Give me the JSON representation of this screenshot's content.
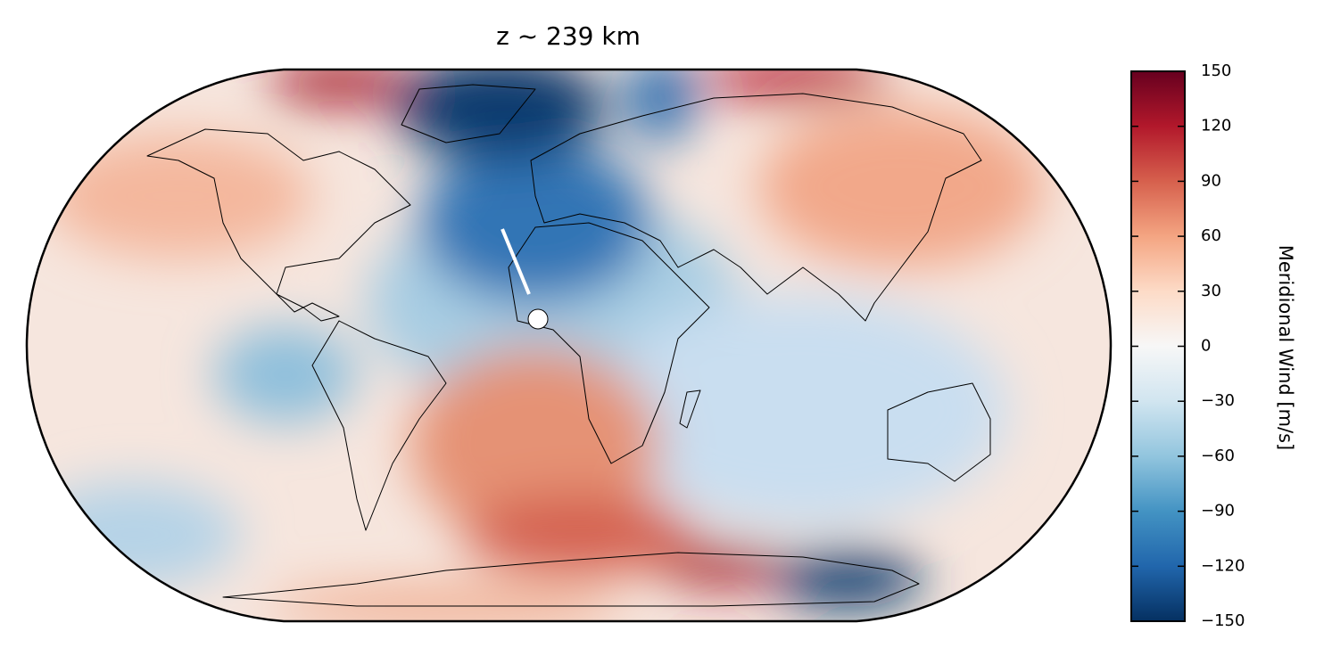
{
  "title": "z ~ 239 km",
  "colorbar": {
    "label": "Meridional Wind [m/s]",
    "lim": [
      -150,
      150
    ],
    "ticks": [
      {
        "value": -150,
        "label": "−150"
      },
      {
        "value": -120,
        "label": "−120"
      },
      {
        "value": -90,
        "label": "−90"
      },
      {
        "value": -60,
        "label": "−60"
      },
      {
        "value": -30,
        "label": "−30"
      },
      0,
      30,
      60,
      90,
      120,
      150
    ],
    "colors": [
      "#053061",
      "#2166ac",
      "#4393c3",
      "#92c5de",
      "#d1e5f0",
      "#f7f7f7",
      "#fddbc7",
      "#f4a582",
      "#d6604d",
      "#b2182b",
      "#67001f"
    ]
  }
}
